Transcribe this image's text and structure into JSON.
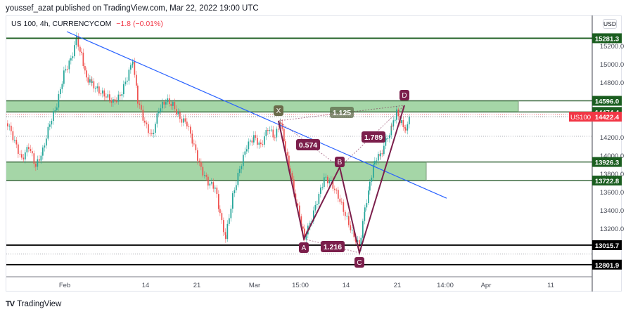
{
  "header": {
    "publisher_line": "youssef_azat published on TradingView.com, Mar 22, 2022 19:00 UTC"
  },
  "legend": {
    "symbol_info": "US 100, 4h, CURRENCYCOM",
    "change": "−1.8 (−0.01%)"
  },
  "currency_button": "USD",
  "footer": {
    "logo_mark": "TV",
    "brand": "TradingView"
  },
  "colors": {
    "up": "#26a69a",
    "down": "#ef5350",
    "zone_fill": "#a5d6a7",
    "zone_border": "#1b5e20",
    "trendline": "#2962ff",
    "pattern": "#7b1e4b",
    "support": "#000000",
    "last_price": "#f23645"
  },
  "chart_data": {
    "type": "candlestick",
    "title": "US 100, 4h, CURRENCYCOM",
    "symbol": "US100",
    "last_price": 14422.4,
    "last_price_label": "US100",
    "y_axis": {
      "ticks": [
        15200.0,
        15000.0,
        14800.0,
        14200.0,
        14000.0,
        13800.0,
        13600.0,
        13400.0,
        13200.0
      ],
      "tick_labels": [
        "15200.0",
        "15000.0",
        "14800.0",
        "14200.0",
        "14000.0",
        "13800.0",
        "13600.0",
        "13400.0",
        "13200.0"
      ],
      "range": [
        12700,
        15400
      ]
    },
    "x_axis": {
      "tick_labels": [
        "Feb",
        "14",
        "21",
        "Mar",
        "15:00",
        "14",
        "21",
        "14:00",
        "Apr",
        "11"
      ],
      "tick_x": [
        92,
        207,
        280,
        362,
        427,
        492,
        565,
        633,
        691,
        783
      ]
    },
    "price_labels": [
      {
        "value": "15281.3",
        "style": "green"
      },
      {
        "value": "14596.0",
        "style": "green"
      },
      {
        "value": "14474.4",
        "style": "green"
      },
      {
        "value": "14422.4",
        "style": "red"
      },
      {
        "value": "13926.3",
        "style": "green"
      },
      {
        "value": "13722.8",
        "style": "green"
      },
      {
        "value": "13015.7",
        "style": "black"
      },
      {
        "value": "12801.9",
        "style": "black"
      }
    ],
    "zones": [
      {
        "name": "resistance-zone",
        "top": 14596.0,
        "bottom": 14474.4
      },
      {
        "name": "support-zone",
        "top": 13926.3,
        "bottom": 13722.8
      }
    ],
    "horizontal_lines": [
      {
        "value": 15281.3,
        "color": "#1b5e20"
      },
      {
        "value": 13015.7,
        "color": "#000000"
      },
      {
        "value": 12801.9,
        "color": "#000000"
      }
    ],
    "harmonic_pattern": {
      "points": [
        {
          "label": "X",
          "price": 14380
        },
        {
          "label": "A",
          "price": 13090
        },
        {
          "label": "B",
          "price": 13830
        },
        {
          "label": "C",
          "price": 12990
        },
        {
          "label": "D",
          "price": 14480
        }
      ],
      "ratios": [
        {
          "label": "0.574",
          "between": "XA-B"
        },
        {
          "label": "1.216",
          "between": "AB-C"
        },
        {
          "label": "1.789",
          "between": "BC-D"
        },
        {
          "label": "1.125",
          "between": "XA-D"
        }
      ]
    },
    "trendline": {
      "from_price": 15300,
      "to_price": 13560,
      "direction": "descending"
    }
  }
}
